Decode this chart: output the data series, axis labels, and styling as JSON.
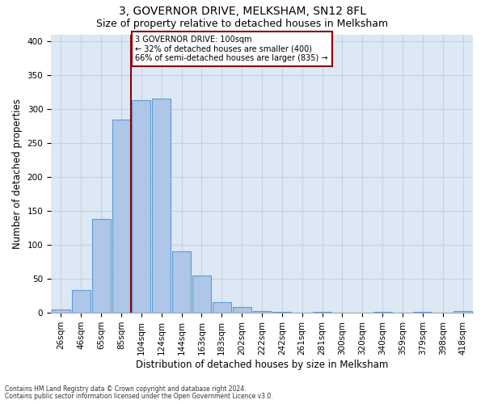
{
  "title": "3, GOVERNOR DRIVE, MELKSHAM, SN12 8FL",
  "subtitle": "Size of property relative to detached houses in Melksham",
  "xlabel": "Distribution of detached houses by size in Melksham",
  "ylabel": "Number of detached properties",
  "footnote1": "Contains HM Land Registry data © Crown copyright and database right 2024.",
  "footnote2": "Contains public sector information licensed under the Open Government Licence v3.0.",
  "annotation_line1": "3 GOVERNOR DRIVE: 100sqm",
  "annotation_line2": "← 32% of detached houses are smaller (400)",
  "annotation_line3": "66% of semi-detached houses are larger (835) →",
  "bar_labels": [
    "26sqm",
    "46sqm",
    "65sqm",
    "85sqm",
    "104sqm",
    "124sqm",
    "144sqm",
    "163sqm",
    "183sqm",
    "202sqm",
    "222sqm",
    "242sqm",
    "261sqm",
    "281sqm",
    "300sqm",
    "320sqm",
    "340sqm",
    "359sqm",
    "379sqm",
    "398sqm",
    "418sqm"
  ],
  "bar_heights": [
    5,
    33,
    138,
    285,
    313,
    315,
    90,
    55,
    16,
    8,
    3,
    1,
    0,
    1,
    0,
    0,
    1,
    0,
    1,
    0,
    2
  ],
  "bar_color": "#aec6e8",
  "bar_edge_color": "#5b9bd5",
  "vline_color": "#8b0000",
  "annotation_box_edgecolor": "#8b0000",
  "ylim": [
    0,
    410
  ],
  "yticks": [
    0,
    50,
    100,
    150,
    200,
    250,
    300,
    350,
    400
  ],
  "grid_color": "#c8d0e0",
  "background_color": "#dde8f5",
  "title_fontsize": 10,
  "subtitle_fontsize": 9,
  "xlabel_fontsize": 8.5,
  "ylabel_fontsize": 8.5,
  "tick_fontsize": 7.5,
  "annot_fontsize": 7,
  "footnote_fontsize": 5.5
}
